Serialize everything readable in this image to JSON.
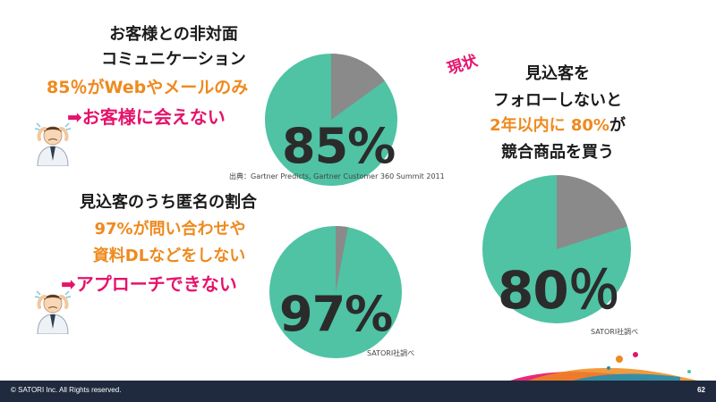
{
  "left_top": {
    "line1": "お客様との非対面",
    "line2": "コミュニケーション",
    "line3": "85％がWebやメールのみ",
    "line4": "➡お客様に会えない",
    "pie_value": 85,
    "pie_label": "85%",
    "source": "出典：Gartner Predicts, Gartner Customer 360 Summit 2011"
  },
  "left_bottom": {
    "line1": "見込客のうち匿名の割合",
    "line2": "97%が問い合わせや",
    "line3": "資料DLなどをしない",
    "line4": "➡アプローチできない",
    "pie_value": 97,
    "pie_label": "97%",
    "source": "SATORI社調べ"
  },
  "right": {
    "tag": "現状",
    "line1": "見込客を",
    "line2": "フォローしないと",
    "line3a": "2年以内に 80%",
    "line3b": "が",
    "line4": "競合商品を買う",
    "pie_value": 80,
    "pie_label": "80％",
    "source": "SATORI社調べ"
  },
  "colors": {
    "teal": "#4fc3a4",
    "gray": "#8a8a8a",
    "orange": "#ee8a1e",
    "pink": "#e6126b",
    "footer": "#1f2a3e"
  },
  "footer": {
    "copyright": "© SATORI Inc. All Rights reserved.",
    "page": "62"
  }
}
